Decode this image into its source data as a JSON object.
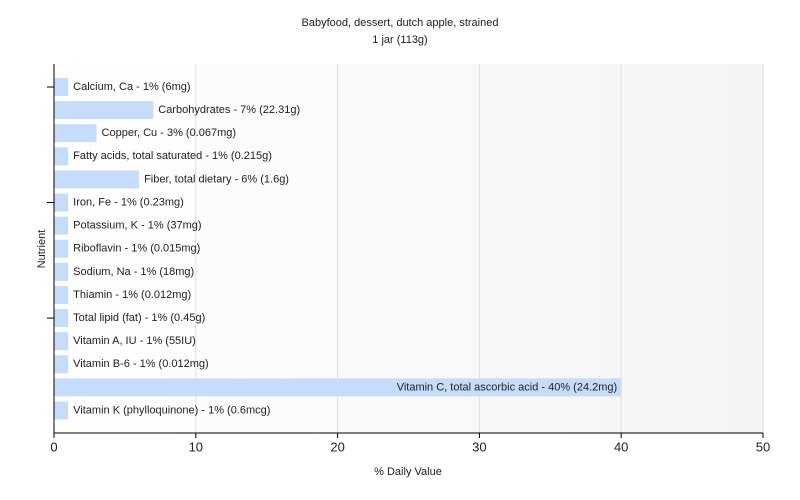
{
  "chart_data": {
    "type": "bar",
    "orientation": "horizontal",
    "title": "Babyfood, dessert, dutch apple, strained",
    "subtitle": "1 jar (113g)",
    "x_label": "% Daily Value",
    "y_label": "Nutrient",
    "categories": [
      "Calcium, Ca - 1% (6mg)",
      "Carbohydrates - 7% (22.31g)",
      "Copper, Cu - 3% (0.067mg)",
      "Fatty acids, total saturated - 1% (0.215g)",
      "Fiber, total dietary - 6% (1.6g)",
      "Iron, Fe - 1% (0.23mg)",
      "Potassium, K - 1% (37mg)",
      "Riboflavin - 1% (0.015mg)",
      "Sodium, Na - 1% (18mg)",
      "Thiamin - 1% (0.012mg)",
      "Total lipid (fat) - 1% (0.45g)",
      "Vitamin A, IU - 1% (55IU)",
      "Vitamin B-6 - 1% (0.012mg)",
      "Vitamin C, total ascorbic acid - 40% (24.2mg)",
      "Vitamin K (phylloquinone) - 1% (0.6mcg)"
    ],
    "values": [
      1,
      7,
      3,
      1,
      6,
      1,
      1,
      1,
      1,
      1,
      1,
      1,
      1,
      40,
      1
    ],
    "color": "#c5dcfb",
    "xlim": [
      0,
      50
    ],
    "xticks": [
      0,
      10,
      20,
      30,
      40,
      50
    ],
    "grid": true
  }
}
